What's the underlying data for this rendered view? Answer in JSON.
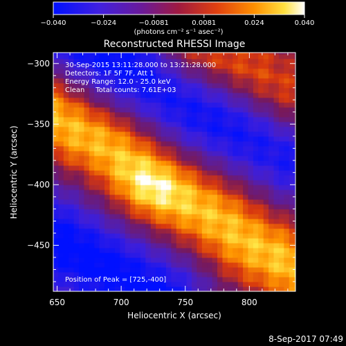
{
  "chart_data": {
    "type": "heatmap",
    "title": "Reconstructed RHESSI Image",
    "xlabel": "Heliocentric X (arcsec)",
    "ylabel": "Heliocentric Y (arcsec)",
    "xlim": [
      647,
      836
    ],
    "ylim": [
      -488,
      -291
    ],
    "x_ticks": [
      650,
      700,
      750,
      800
    ],
    "y_ticks": [
      -300,
      -350,
      -400,
      -450
    ],
    "x_tick_labels": [
      "650",
      "700",
      "750",
      "800"
    ],
    "y_tick_labels": [
      "−300",
      "−350",
      "−400",
      "−450"
    ],
    "colorbar": {
      "range": [
        -0.04,
        0.04
      ],
      "tick_labels": [
        "−0.040",
        "−0.024",
        "−0.0081",
        "0.0081",
        "0.024",
        "0.040"
      ],
      "unit_label": "(photons cm⁻² s⁻¹ asec⁻²)",
      "colors": [
        "#0010ff",
        "#5a1fd0",
        "#7a1a8a",
        "#d03010",
        "#ff8000",
        "#ffe040",
        "#ffffff"
      ]
    },
    "annotations": [
      "30-Sep-2015 13:11:28.000 to 13:21:28.000",
      "Detectors: 1F 5F 7F, Att 1",
      "Energy Range: 12.0 - 25.0 keV",
      "Clean     Total counts: 7.61E+03"
    ],
    "peak_label": "Position of Peak = [725,-400]",
    "peak": [
      725,
      -400
    ],
    "ridges": [
      {
        "level": 0.9,
        "comment_free": true,
        "points": [
          [
            640,
            -340
          ],
          [
            690,
            -368
          ],
          [
            725,
            -400
          ],
          [
            770,
            -425
          ],
          [
            800,
            -448
          ],
          [
            840,
            -470
          ]
        ]
      },
      {
        "level": 0.7,
        "points": [
          [
            760,
            -292
          ],
          [
            800,
            -312
          ],
          [
            840,
            -340
          ]
        ]
      },
      {
        "level": -0.9,
        "points": [
          [
            640,
            -255
          ],
          [
            700,
            -300
          ],
          [
            760,
            -335
          ],
          [
            840,
            -375
          ]
        ]
      },
      {
        "level": -0.9,
        "points": [
          [
            640,
            -440
          ],
          [
            690,
            -470
          ],
          [
            730,
            -495
          ]
        ]
      }
    ]
  },
  "footer": {
    "date_stamp": "8-Sep-2017 07:49"
  }
}
